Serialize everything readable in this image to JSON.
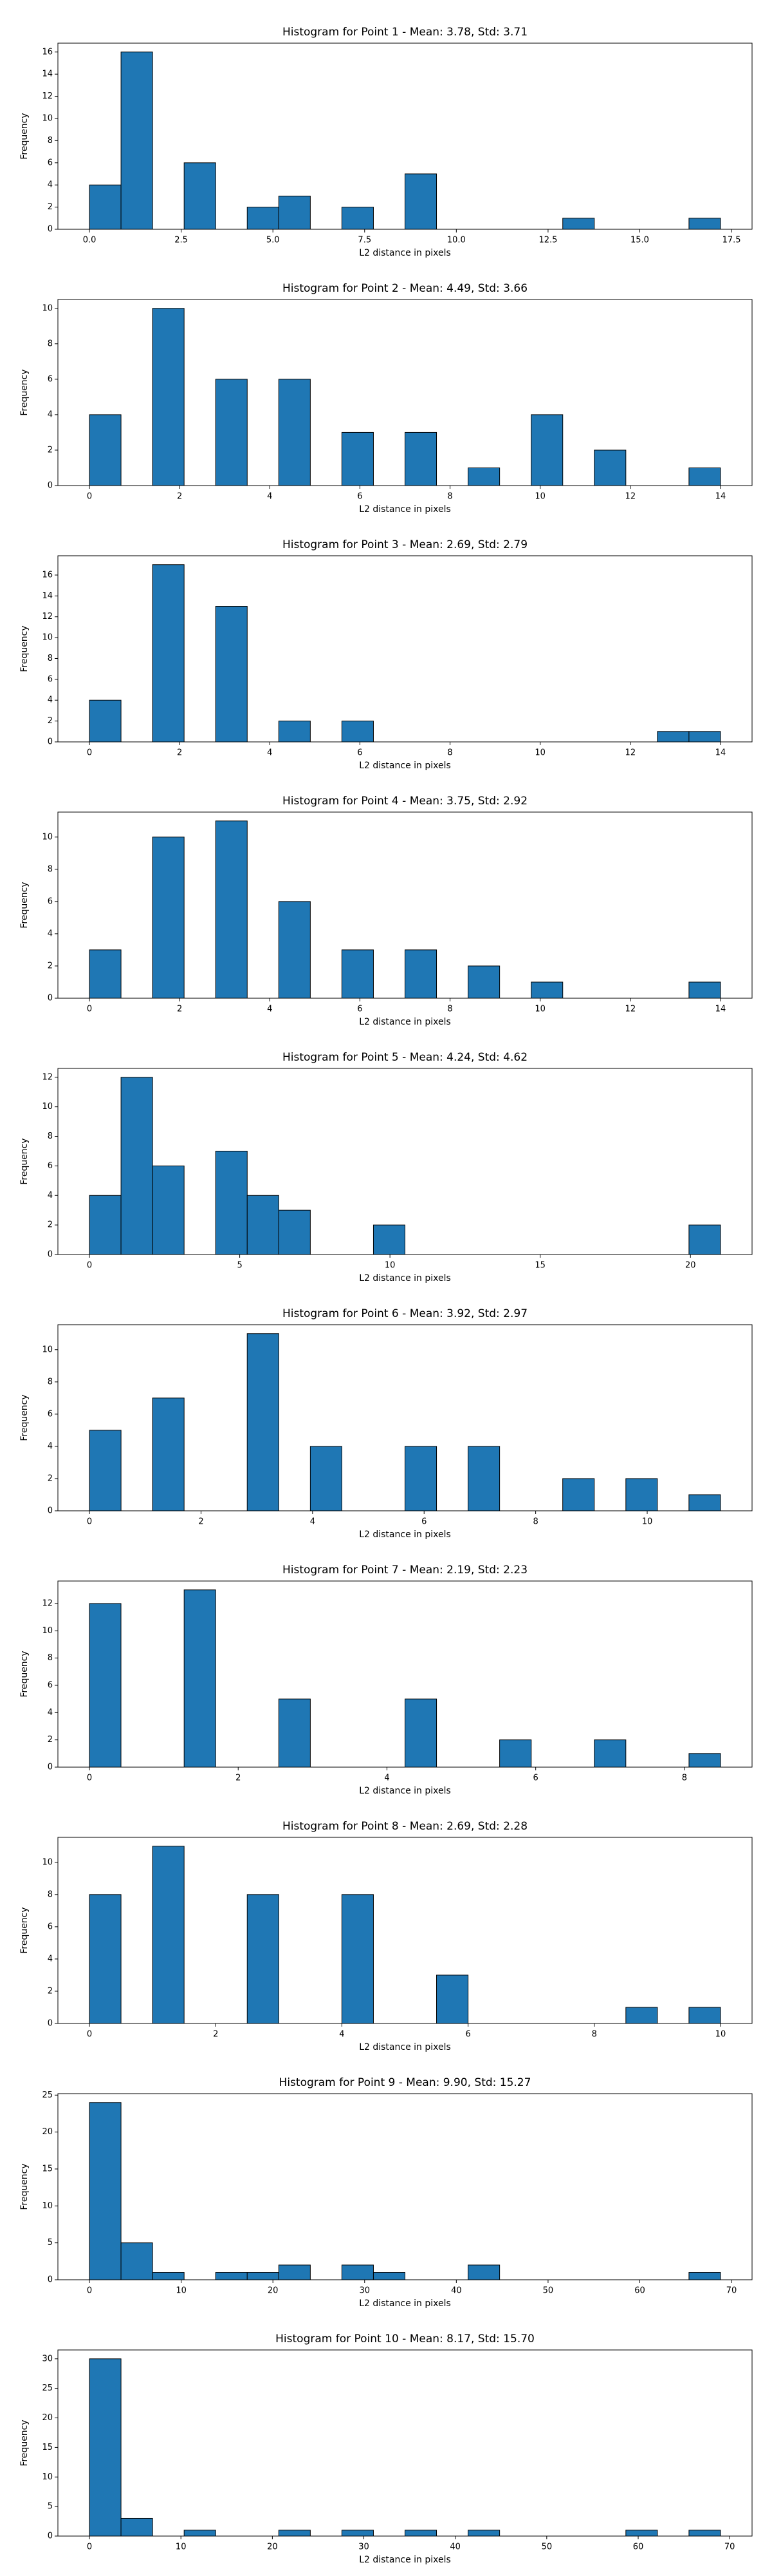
{
  "chart_data": [
    {
      "type": "histogram",
      "title": "Histogram for Point 1 - Mean: 3.78, Std: 3.71",
      "x_label": "L2 distance in pixels",
      "y_label": "Frequency",
      "color": "#1f77b4",
      "bins": [
        0,
        0.86,
        1.72,
        2.58,
        3.44,
        4.3,
        5.16,
        6.02,
        6.88,
        7.74,
        8.6,
        9.46,
        10.32,
        11.18,
        12.04,
        12.9,
        13.76,
        14.62,
        15.48,
        16.34,
        17.2
      ],
      "values": [
        4,
        16,
        0,
        6,
        0,
        2,
        3,
        0,
        2,
        0,
        5,
        0,
        0,
        0,
        0,
        1,
        0,
        0,
        0,
        1
      ],
      "xlim": [
        -0.86,
        18.06
      ],
      "ylim": [
        0,
        16.8
      ],
      "xticks": [
        {
          "value": 0,
          "label": "0.0"
        },
        2.5,
        {
          "value": 5,
          "label": "5.0"
        },
        7.5,
        {
          "value": 10,
          "label": "10.0"
        },
        12.5,
        {
          "value": 15,
          "label": "15.0"
        },
        17.5
      ],
      "yticks": [
        0,
        2,
        4,
        6,
        8,
        10,
        12,
        14,
        16
      ]
    },
    {
      "type": "histogram",
      "title": "Histogram for Point 2 - Mean: 4.49, Std: 3.66",
      "x_label": "L2 distance in pixels",
      "y_label": "Frequency",
      "color": "#1f77b4",
      "bins": [
        0,
        0.7,
        1.4,
        2.1,
        2.8,
        3.5,
        4.2,
        4.9,
        5.6,
        6.3,
        7,
        7.7,
        8.4,
        9.1,
        9.8,
        10.5,
        11.2,
        11.9,
        12.6,
        13.3,
        14
      ],
      "values": [
        4,
        0,
        10,
        0,
        6,
        0,
        6,
        0,
        3,
        0,
        3,
        0,
        1,
        0,
        4,
        0,
        2,
        0,
        0,
        1
      ],
      "xlim": [
        -0.7,
        14.7
      ],
      "ylim": [
        0,
        10.5
      ],
      "xticks": [
        0,
        2,
        4,
        6,
        8,
        10,
        12,
        14
      ],
      "yticks": [
        0,
        2,
        4,
        6,
        8,
        10
      ]
    },
    {
      "type": "histogram",
      "title": "Histogram for Point 3 - Mean: 2.69, Std: 2.79",
      "x_label": "L2 distance in pixels",
      "y_label": "Frequency",
      "color": "#1f77b4",
      "bins": [
        0,
        0.7,
        1.4,
        2.1,
        2.8,
        3.5,
        4.2,
        4.9,
        5.6,
        6.3,
        7,
        7.7,
        8.4,
        9.1,
        9.8,
        10.5,
        11.2,
        11.9,
        12.6,
        13.3,
        14
      ],
      "values": [
        4,
        0,
        17,
        0,
        13,
        0,
        2,
        0,
        2,
        0,
        0,
        0,
        0,
        0,
        0,
        0,
        0,
        0,
        1,
        1
      ],
      "xlim": [
        -0.7,
        14.7
      ],
      "ylim": [
        0,
        17.85
      ],
      "xticks": [
        0,
        2,
        4,
        6,
        8,
        10,
        12,
        14
      ],
      "yticks": [
        0,
        2,
        4,
        6,
        8,
        10,
        12,
        14,
        16
      ]
    },
    {
      "type": "histogram",
      "title": "Histogram for Point 4 - Mean: 3.75, Std: 2.92",
      "x_label": "L2 distance in pixels",
      "y_label": "Frequency",
      "color": "#1f77b4",
      "bins": [
        0,
        0.7,
        1.4,
        2.1,
        2.8,
        3.5,
        4.2,
        4.9,
        5.6,
        6.3,
        7,
        7.7,
        8.4,
        9.1,
        9.8,
        10.5,
        11.2,
        11.9,
        12.6,
        13.3,
        14
      ],
      "values": [
        3,
        0,
        10,
        0,
        11,
        0,
        6,
        0,
        3,
        0,
        3,
        0,
        2,
        0,
        1,
        0,
        0,
        0,
        0,
        1
      ],
      "xlim": [
        -0.7,
        14.7
      ],
      "ylim": [
        0,
        11.55
      ],
      "xticks": [
        0,
        2,
        4,
        6,
        8,
        10,
        12,
        14
      ],
      "yticks": [
        0,
        2,
        4,
        6,
        8,
        10
      ]
    },
    {
      "type": "histogram",
      "title": "Histogram for Point 5 - Mean: 4.24, Std: 4.62",
      "x_label": "L2 distance in pixels",
      "y_label": "Frequency",
      "color": "#1f77b4",
      "bins": [
        0,
        1.05,
        2.1,
        3.15,
        4.2,
        5.25,
        6.3,
        7.35,
        8.4,
        9.45,
        10.5,
        11.55,
        12.6,
        13.65,
        14.7,
        15.75,
        16.8,
        17.85,
        18.9,
        19.95,
        21
      ],
      "values": [
        4,
        12,
        6,
        0,
        7,
        4,
        3,
        0,
        0,
        2,
        0,
        0,
        0,
        0,
        0,
        0,
        0,
        0,
        0,
        2
      ],
      "xlim": [
        -1.05,
        22.05
      ],
      "ylim": [
        0,
        12.6
      ],
      "xticks": [
        0,
        5,
        10,
        15,
        20
      ],
      "yticks": [
        0,
        2,
        4,
        6,
        8,
        10,
        12
      ]
    },
    {
      "type": "histogram",
      "title": "Histogram for Point 6 - Mean: 3.92, Std: 2.97",
      "x_label": "L2 distance in pixels",
      "y_label": "Frequency",
      "color": "#1f77b4",
      "bins": [
        0,
        0.566,
        1.131,
        1.697,
        2.263,
        2.828,
        3.394,
        3.96,
        4.525,
        5.091,
        5.657,
        6.223,
        6.788,
        7.354,
        7.92,
        8.485,
        9.051,
        9.617,
        10.182,
        10.748,
        11.314
      ],
      "values": [
        5,
        0,
        7,
        0,
        0,
        11,
        0,
        4,
        0,
        0,
        4,
        0,
        4,
        0,
        0,
        2,
        0,
        2,
        0,
        1
      ],
      "xlim": [
        -0.566,
        11.88
      ],
      "ylim": [
        0,
        11.55
      ],
      "xticks": [
        0,
        2,
        4,
        6,
        8,
        10
      ],
      "yticks": [
        0,
        2,
        4,
        6,
        8,
        10
      ]
    },
    {
      "type": "histogram",
      "title": "Histogram for Point 7 - Mean: 2.19, Std: 2.23",
      "x_label": "L2 distance in pixels",
      "y_label": "Frequency",
      "color": "#1f77b4",
      "bins": [
        0,
        0.424,
        0.849,
        1.273,
        1.697,
        2.121,
        2.546,
        2.97,
        3.394,
        3.818,
        4.243,
        4.667,
        5.091,
        5.515,
        5.94,
        6.364,
        6.788,
        7.212,
        7.637,
        8.061,
        8.485
      ],
      "values": [
        12,
        0,
        0,
        13,
        0,
        0,
        5,
        0,
        0,
        0,
        5,
        0,
        0,
        2,
        0,
        0,
        2,
        0,
        0,
        1
      ],
      "xlim": [
        -0.424,
        8.909
      ],
      "ylim": [
        0,
        13.65
      ],
      "xticks": [
        0,
        2,
        4,
        6,
        8
      ],
      "yticks": [
        0,
        2,
        4,
        6,
        8,
        10,
        12
      ]
    },
    {
      "type": "histogram",
      "title": "Histogram for Point 8 - Mean: 2.69, Std: 2.28",
      "x_label": "L2 distance in pixels",
      "y_label": "Frequency",
      "color": "#1f77b4",
      "bins": [
        0,
        0.5,
        1,
        1.5,
        2,
        2.5,
        3,
        3.5,
        4,
        4.5,
        5,
        5.5,
        6,
        6.5,
        7,
        7.5,
        8,
        8.5,
        9,
        9.5,
        10
      ],
      "values": [
        8,
        0,
        11,
        0,
        0,
        8,
        0,
        0,
        8,
        0,
        0,
        3,
        0,
        0,
        0,
        0,
        0,
        1,
        0,
        1
      ],
      "xlim": [
        -0.5,
        10.5
      ],
      "ylim": [
        0,
        11.55
      ],
      "xticks": [
        0,
        2,
        4,
        6,
        8,
        10
      ],
      "yticks": [
        0,
        2,
        4,
        6,
        8,
        10
      ]
    },
    {
      "type": "histogram",
      "title": "Histogram for Point 9 - Mean: 9.90, Std: 15.27",
      "x_label": "L2 distance in pixels",
      "y_label": "Frequency",
      "color": "#1f77b4",
      "bins": [
        0,
        3.44,
        6.88,
        10.32,
        13.76,
        17.2,
        20.64,
        24.08,
        27.52,
        30.96,
        34.4,
        37.84,
        41.28,
        44.72,
        48.16,
        51.6,
        55.04,
        58.48,
        61.92,
        65.36,
        68.8
      ],
      "values": [
        24,
        5,
        1,
        0,
        1,
        1,
        2,
        0,
        2,
        1,
        0,
        0,
        2,
        0,
        0,
        0,
        0,
        0,
        0,
        1
      ],
      "xlim": [
        -3.44,
        72.24
      ],
      "ylim": [
        0,
        25.2
      ],
      "xticks": [
        0,
        10,
        20,
        30,
        40,
        50,
        60,
        70
      ],
      "yticks": [
        0,
        5,
        10,
        15,
        20,
        25
      ]
    },
    {
      "type": "histogram",
      "title": "Histogram for Point 10 - Mean: 8.17, Std: 15.70",
      "x_label": "L2 distance in pixels",
      "y_label": "Frequency",
      "color": "#1f77b4",
      "bins": [
        0,
        3.45,
        6.9,
        10.35,
        13.8,
        17.25,
        20.7,
        24.15,
        27.6,
        31.05,
        34.5,
        37.95,
        41.4,
        44.85,
        48.3,
        51.75,
        55.2,
        58.65,
        62.1,
        65.55,
        69
      ],
      "values": [
        30,
        3,
        0,
        1,
        0,
        0,
        1,
        0,
        1,
        0,
        1,
        0,
        1,
        0,
        0,
        0,
        0,
        1,
        0,
        1
      ],
      "xlim": [
        -3.45,
        72.45
      ],
      "ylim": [
        0,
        31.5
      ],
      "xticks": [
        0,
        10,
        20,
        30,
        40,
        50,
        60,
        70
      ],
      "yticks": [
        0,
        5,
        10,
        15,
        20,
        25,
        30
      ]
    }
  ]
}
